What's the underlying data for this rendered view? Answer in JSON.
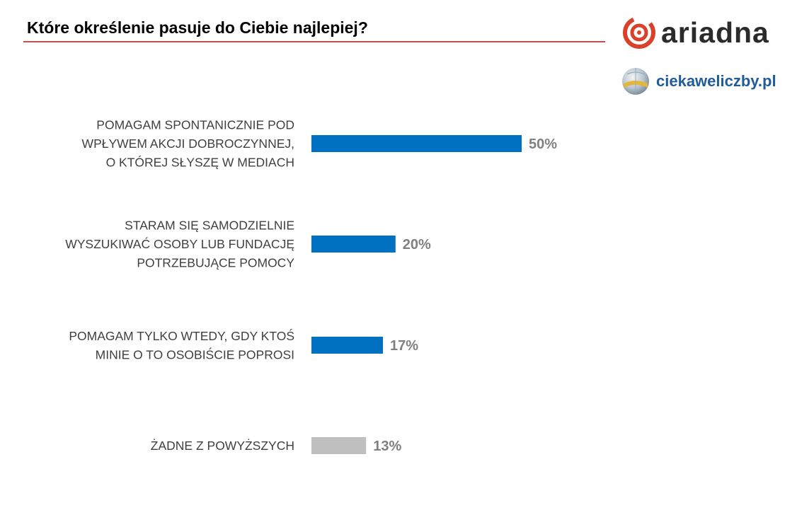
{
  "header": {
    "title": "Które określenie pasuje do Ciebie najlepiej?",
    "brand": "ariadna",
    "site": "ciekaweliczby.pl"
  },
  "colors": {
    "accent_line": "#c0504d",
    "bar_primary": "#0070c0",
    "bar_secondary": "#bfbfbf",
    "value_label": "#808080",
    "brand_red": "#d9412b",
    "site_blue": "#1f5c99"
  },
  "chart_data": {
    "type": "bar",
    "orientation": "horizontal",
    "title": "Które określenie pasuje do Ciebie najlepiej?",
    "xlabel": "",
    "ylabel": "",
    "grid": false,
    "unit": "%",
    "xlim": [
      0,
      50
    ],
    "categories": [
      [
        "POMAGAM SPONTANICZNIE POD",
        "WPŁYWEM AKCJI DOBROCZYNNEJ,",
        "O KTÓREJ SŁYSZĘ W MEDIACH"
      ],
      [
        "STARAM SIĘ SAMODZIELNIE",
        "WYSZUKIWAĆ OSOBY LUB FUNDACJĘ",
        "POTRZEBUJĄCE POMOCY"
      ],
      [
        "POMAGAM TYLKO WTEDY, GDY KTOŚ",
        "MINIE O TO OSOBIŚCIE POPROSI"
      ],
      [
        "ŻADNE Z POWYŻSZYCH"
      ]
    ],
    "values": [
      50,
      20,
      17,
      13
    ],
    "value_labels": [
      "50%",
      "20%",
      "17%",
      "13%"
    ],
    "bar_colors": [
      "#0070c0",
      "#0070c0",
      "#0070c0",
      "#bfbfbf"
    ]
  }
}
